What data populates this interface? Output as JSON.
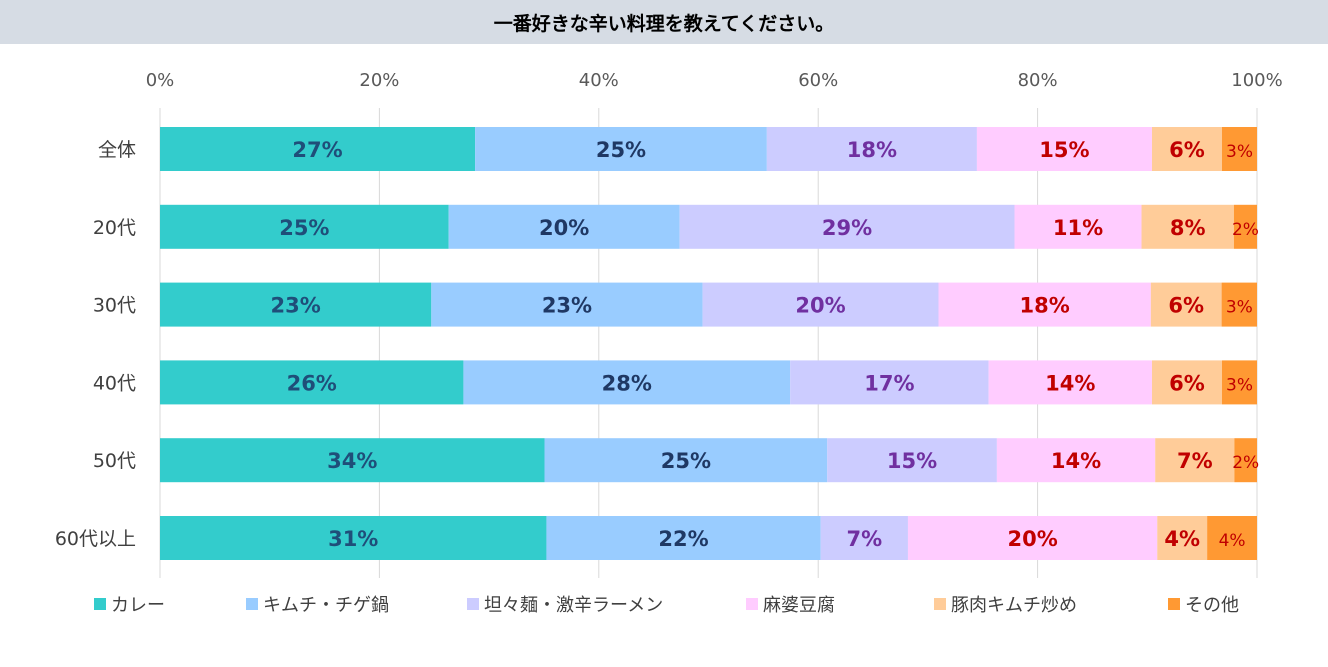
{
  "chart_data": {
    "type": "bar",
    "orientation": "horizontal",
    "stacked": "percent",
    "title": "一番好きな辛い料理を教えてください。",
    "categories": [
      "全体",
      "20代",
      "30代",
      "40代",
      "50代",
      "60代以上"
    ],
    "xlim": [
      0,
      100
    ],
    "x_ticks": [
      "0%",
      "20%",
      "40%",
      "60%",
      "80%",
      "100%"
    ],
    "grid": true,
    "legend_position": "bottom",
    "series": [
      {
        "name": "カレー",
        "color": "#33cccc",
        "label_color": "#1f4e79",
        "values": [
          27,
          25,
          23,
          26,
          34,
          31
        ],
        "labels": [
          "27%",
          "25%",
          "23%",
          "26%",
          "34%",
          "31%"
        ]
      },
      {
        "name": "キムチ・チゲ鍋",
        "color": "#99ccff",
        "label_color": "#1f3864",
        "values": [
          25,
          20,
          23,
          28,
          25,
          22
        ],
        "labels": [
          "25%",
          "20%",
          "23%",
          "28%",
          "25%",
          "22%"
        ]
      },
      {
        "name": "坦々麺・激辛ラーメン",
        "color": "#ccccff",
        "label_color": "#7030a0",
        "values": [
          18,
          29,
          20,
          17,
          15,
          7
        ],
        "labels": [
          "18%",
          "29%",
          "20%",
          "17%",
          "15%",
          "7%"
        ]
      },
      {
        "name": "麻婆豆腐",
        "color": "#ffccff",
        "label_color": "#c00000",
        "values": [
          15,
          11,
          18,
          14,
          14,
          20
        ],
        "labels": [
          "15%",
          "11%",
          "18%",
          "14%",
          "14%",
          "20%"
        ]
      },
      {
        "name": "豚肉キムチ炒め",
        "color": "#ffcc99",
        "label_color": "#c00000",
        "values": [
          6,
          8,
          6,
          6,
          7,
          4
        ],
        "labels": [
          "6%",
          "8%",
          "6%",
          "6%",
          "7%",
          "4%"
        ]
      },
      {
        "name": "その他",
        "color": "#ff9933",
        "label_color": "#c00000",
        "values": [
          3,
          2,
          3,
          3,
          2,
          4
        ],
        "labels": [
          "3%",
          "2%",
          "3%",
          "3%",
          "2%",
          "4%"
        ]
      }
    ]
  }
}
